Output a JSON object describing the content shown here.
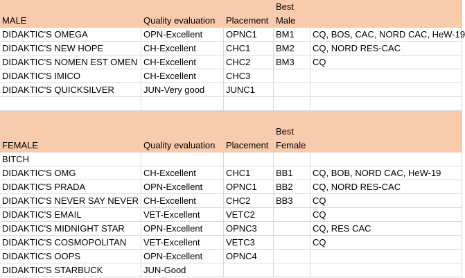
{
  "sections": [
    {
      "header": {
        "name": "MALE",
        "quality": "Quality evaluation",
        "placement": "Placement",
        "best": [
          "Best",
          "Male"
        ]
      },
      "rows": [
        {
          "name": "DIDAKTIC'S OMEGA",
          "quality": "OPN-Excellent",
          "placement": "OPNC1",
          "best": "BM1",
          "titles": "CQ, BOS, CAC, NORD CAC, HeW-19"
        },
        {
          "name": "DIDAKTIC'S NEW HOPE",
          "quality": "CH-Excellent",
          "placement": "CHC1",
          "best": "BM2",
          "titles": "CQ, NORD RES-CAC"
        },
        {
          "name": "DIDAKTIC'S NOMEN EST OMEN",
          "quality": "CH-Excellent",
          "placement": "CHC2",
          "best": "BM3",
          "titles": "CQ"
        },
        {
          "name": "DIDAKTIC'S IMICO",
          "quality": "CH-Excellent",
          "placement": "CHC3"
        },
        {
          "name": "DIDAKTIC'S QUICKSILVER",
          "quality": "JUN-Very good",
          "placement": "JUNC1"
        }
      ]
    },
    {
      "header": {
        "name": "FEMALE",
        "quality": "Quality evaluation",
        "placement": "Placement",
        "best": [
          "Best",
          "Female"
        ]
      },
      "rows": [
        {
          "name": "BITCH"
        },
        {
          "name": "DIDAKTIC'S OMG",
          "quality": "CH-Excellent",
          "placement": "CHC1",
          "best": "BB1",
          "titles": "CQ, BOB, NORD CAC, HeW-19"
        },
        {
          "name": "DIDAKTIC'S PRADA",
          "quality": "OPN-Excellent",
          "placement": "OPNC1",
          "best": "BB2",
          "titles": "CQ, NORD RES-CAC"
        },
        {
          "name": "DIDAKTIC'S NEVER SAY NEVER",
          "quality": "CH-Excellent",
          "placement": "CHC2",
          "best": "BB3",
          "titles": "CQ"
        },
        {
          "name": "DIDAKTIC'S EMAIL",
          "quality": "VET-Excellent",
          "placement": "VETC2",
          "titles": "CQ"
        },
        {
          "name": "DIDAKTIC'S MIDNIGHT STAR",
          "quality": "OPN-Excellent",
          "placement": "OPNC3",
          "titles": "CQ, RES CAC"
        },
        {
          "name": "DIDAKTIC'S COSMOPOLITAN",
          "quality": "VET-Excellent",
          "placement": "VETC3",
          "titles": "CQ"
        },
        {
          "name": "DIDAKTIC'S OOPS",
          "quality": "OPN-Excellent",
          "placement": "OPNC4"
        },
        {
          "name": "DIDAKTIC'S STARBUCK",
          "quality": "JUN-Good"
        }
      ]
    }
  ]
}
